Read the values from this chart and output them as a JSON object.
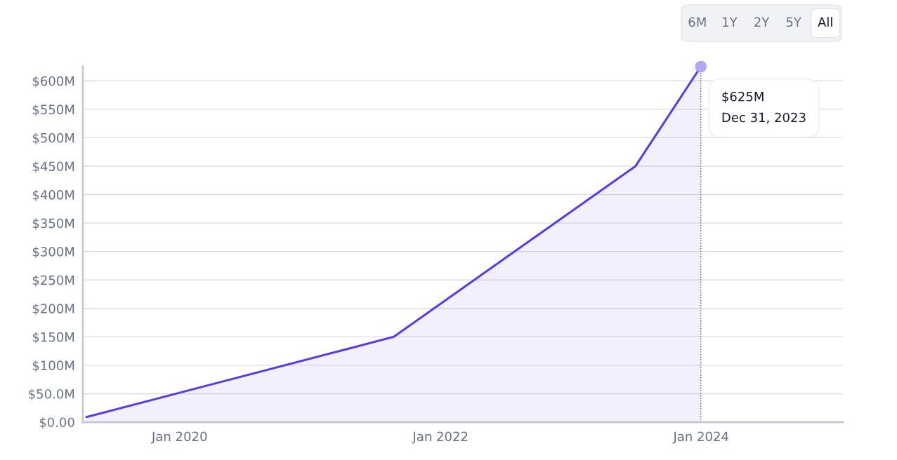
{
  "chart_data": {
    "type": "area",
    "series": [
      {
        "color": "#5b3be8",
        "x": [
          "2019-04-15",
          "2021-08-23",
          "2023-07-01",
          "2023-12-31"
        ],
        "values": [
          9,
          150,
          450,
          625
        ]
      }
    ],
    "xlim": [
      "2019-04-05",
      "2025-02-01"
    ],
    "ylim": [
      0,
      625
    ],
    "xticks": [
      {
        "value": "2020-01-01",
        "label": "Jan 2020"
      },
      {
        "value": "2022-01-01",
        "label": "Jan 2022"
      },
      {
        "value": "2024-01-01",
        "label": "Jan 2024"
      }
    ],
    "yticks": [
      {
        "value": 0,
        "label": "$0.00"
      },
      {
        "value": 50,
        "label": "$50.0M"
      },
      {
        "value": 100,
        "label": "$100M"
      },
      {
        "value": 150,
        "label": "$150M"
      },
      {
        "value": 200,
        "label": "$200M"
      },
      {
        "value": 250,
        "label": "$250M"
      },
      {
        "value": 300,
        "label": "$300M"
      },
      {
        "value": 350,
        "label": "$350M"
      },
      {
        "value": 400,
        "label": "$400M"
      },
      {
        "value": 450,
        "label": "$450M"
      },
      {
        "value": 500,
        "label": "$500M"
      },
      {
        "value": 550,
        "label": "$550M"
      },
      {
        "value": 600,
        "label": "$600M"
      }
    ],
    "grid": "y",
    "marker": "none",
    "line_style": "solid",
    "ref_lines": [
      {
        "axis": "x",
        "value": "2023-12-31",
        "label": null,
        "color": "#555566",
        "line_style": "dotted"
      }
    ],
    "annotations": [
      "$625M\nDec 31, 2023",
      "6M",
      "1Y",
      "2Y",
      "5Y",
      "All"
    ]
  }
}
